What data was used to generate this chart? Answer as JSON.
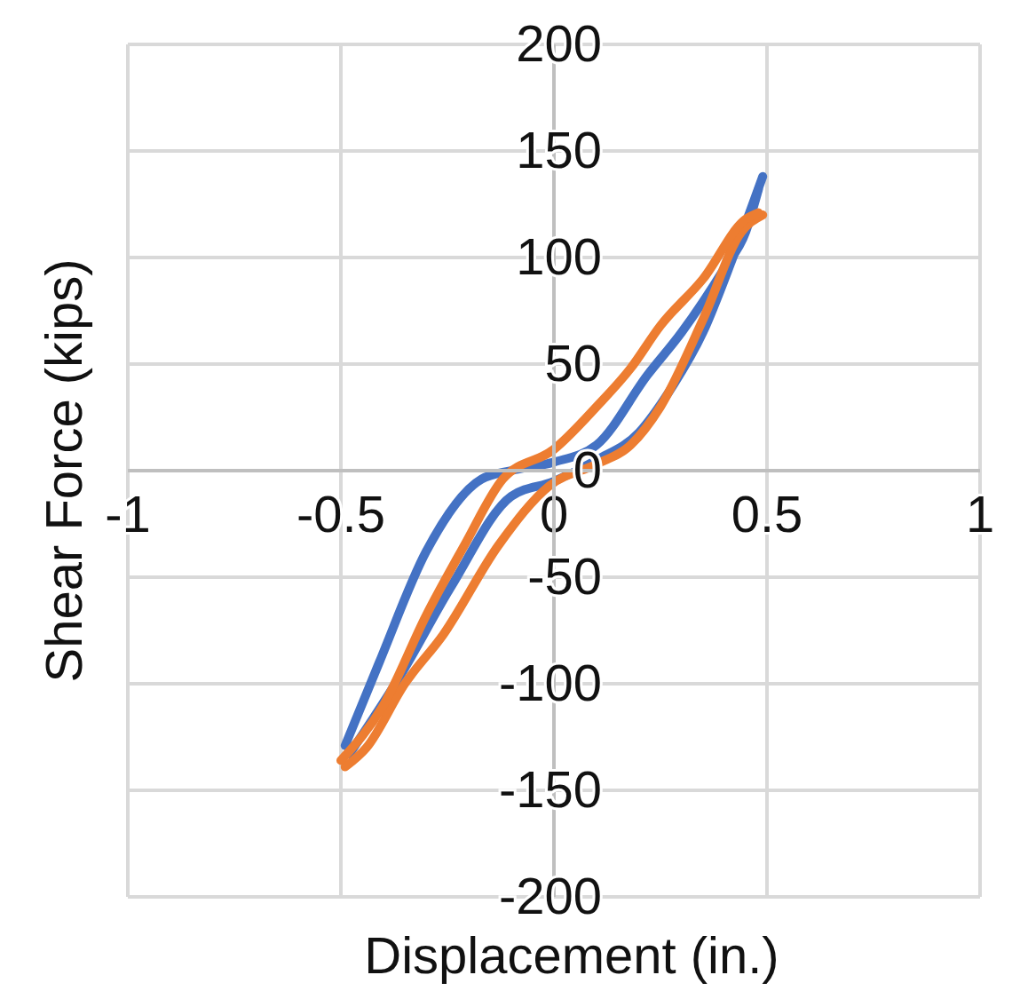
{
  "chart_data": {
    "type": "line",
    "xlabel": "Displacement (in.)",
    "ylabel": "Shear Force (kips)",
    "xlim": [
      -1,
      1
    ],
    "xticks": [
      -1,
      -0.5,
      0,
      0.5,
      1
    ],
    "ylim": [
      -200,
      200
    ],
    "yticks": [
      -200,
      -150,
      -100,
      -50,
      0,
      50,
      100,
      150,
      200
    ],
    "grid": true,
    "marker": "none",
    "line_style": "solid",
    "series": [
      {
        "color": "#4472c4",
        "x": [
          -0.48,
          -0.36,
          -0.24,
          -0.1,
          0,
          0.1,
          0.2,
          0.27,
          0.35,
          0.42,
          0.49
        ],
        "values": [
          -133,
          -96,
          -54,
          -12,
          -5,
          5,
          18,
          37,
          65,
          100,
          138
        ]
      },
      {
        "color": "#4472c4",
        "x": [
          -0.49,
          -0.41,
          -0.3,
          -0.17,
          -0.1,
          0,
          0.1,
          0.22,
          0.3,
          0.4,
          0.45,
          0.48
        ],
        "values": [
          -129,
          -90,
          -38,
          -4,
          0,
          4,
          12,
          45,
          65,
          95,
          112,
          132
        ]
      },
      {
        "color": "#ed7d31",
        "x": [
          -0.49,
          -0.44,
          -0.35,
          -0.26,
          -0.13,
          -0.01,
          0.1,
          0.18,
          0.25,
          0.35,
          0.44,
          0.49
        ],
        "values": [
          -139,
          -130,
          -100,
          -77,
          -35,
          -7,
          3,
          12,
          30,
          71,
          112,
          120
        ]
      },
      {
        "color": "#ed7d31",
        "x": [
          -0.5,
          -0.4,
          -0.3,
          -0.21,
          -0.12,
          0,
          0.1,
          0.18,
          0.25,
          0.35,
          0.45,
          0.48
        ],
        "values": [
          -136,
          -110,
          -68,
          -35,
          -4,
          10,
          30,
          48,
          68,
          90,
          118,
          121
        ]
      }
    ]
  }
}
